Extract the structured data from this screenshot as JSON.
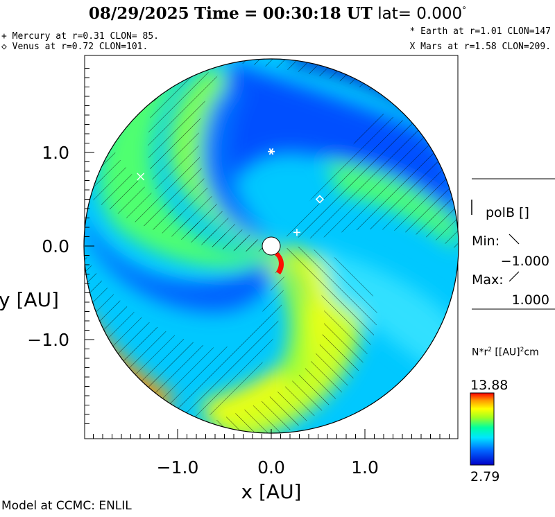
{
  "header": {
    "date": "08/29/2025",
    "time_label": "Time",
    "time": "00:30:18 UT",
    "lat_label": "lat=",
    "lat_value": "0.000",
    "lat_unit": "°"
  },
  "planets": {
    "mercury": {
      "symbol": "+",
      "text": "Mercury at r=0.31 CLON= 85."
    },
    "venus": {
      "symbol": "◇",
      "text": "Venus at r=0.72 CLON=101."
    },
    "earth": {
      "symbol": "*",
      "text": "Earth at  r=1.01 CLON=147"
    },
    "mars": {
      "symbol": "X",
      "text": "Mars at r=1.58 CLON=209."
    }
  },
  "polarity": {
    "label": "polB []",
    "min_label": "Min:",
    "min_value": "−1.000",
    "max_label": "Max:",
    "max_value": "1.000"
  },
  "colorbar": {
    "title_main": "N*r",
    "title_sup": "2",
    "title_units": "[[AU]",
    "title_units_sup": "2",
    "title_units_tail": "cm",
    "max": "13.88",
    "min": "2.79"
  },
  "credit": "Model at CCMC: ENLIL",
  "chart_data": {
    "type": "heatmap",
    "title": "08/29/2025 Time = 00:30:18 UT lat= 0.000°",
    "xlabel": "x [AU]",
    "ylabel": "y [AU]",
    "xlim": [
      -2.0,
      2.0
    ],
    "ylim": [
      -2.0,
      2.0
    ],
    "x_ticks": [
      -1.0,
      0.0,
      1.0
    ],
    "y_ticks": [
      -1.0,
      0.0,
      1.0
    ],
    "x_tick_labels": [
      "−1.0",
      "0.0",
      "1.0"
    ],
    "y_tick_labels": [
      "−1.0",
      "0.0",
      "1.0"
    ],
    "domain_radius_au": 2.0,
    "variable": "N*r^2 [[AU]^2 cm^-3]",
    "value_range": [
      2.79,
      13.88
    ],
    "colormap": [
      "#0000c8",
      "#0050ff",
      "#00c8ff",
      "#00ffc0",
      "#80ff40",
      "#ffff00",
      "#ff9600",
      "#ff0000"
    ],
    "planet_positions": [
      {
        "name": "Mercury",
        "marker": "+",
        "r": 0.31,
        "clon": 85
      },
      {
        "name": "Venus",
        "marker": "◇",
        "r": 0.72,
        "clon": 101
      },
      {
        "name": "Earth",
        "marker": "*",
        "r": 1.01,
        "clon": 147
      },
      {
        "name": "Mars",
        "marker": "X",
        "r": 1.58,
        "clon": 209
      }
    ]
  }
}
